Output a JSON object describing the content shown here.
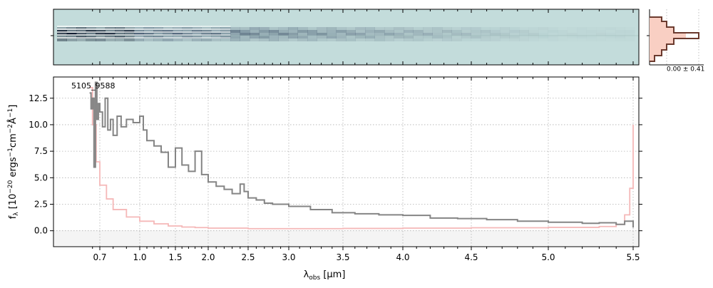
{
  "chart_data": {
    "type": "line",
    "label": "5105_9588",
    "xlabel_main": "λ",
    "xlabel_sub": "obs",
    "xlabel_unit": "[μm]",
    "ylabel": "f_λ [10^-20 ergs^-1 cm^-2 Å^-1]",
    "ylabel_main": "f",
    "ylabel_sub": "λ",
    "ylabel_rest": " [10",
    "ylabel_exp1": "−20",
    "ylabel_mid1": " ergs",
    "ylabel_exp2": "−1",
    "ylabel_mid2": "cm",
    "ylabel_exp3": "−2",
    "ylabel_mid3": "Å",
    "ylabel_exp4": "−1",
    "ylabel_end": "]",
    "xticks": [
      0.7,
      1.0,
      1.5,
      2.0,
      2.5,
      3.0,
      3.5,
      4.0,
      4.5,
      5.0,
      5.5
    ],
    "xtick_labels": [
      "0.7",
      "1.0",
      "1.5",
      "2.0",
      "2.5",
      "3.0",
      "3.5",
      "4.0",
      "4.5",
      "5.0",
      "5.5"
    ],
    "yticks": [
      0.0,
      2.5,
      5.0,
      7.5,
      10.0,
      12.5
    ],
    "ytick_labels": [
      "0.0",
      "2.5",
      "5.0",
      "7.5",
      "10.0",
      "12.5"
    ],
    "ylim": [
      -1.5,
      14.5
    ],
    "xlim": [
      0.55,
      5.52
    ],
    "grid": true,
    "profile_annotation": "0.00 ± 0.41",
    "colors": {
      "flux": "#858585",
      "error": "#f5b8b8",
      "profile": "#6b3a2e",
      "profile_fill": "#f9cfc3",
      "image_bg": "#c3dcdb"
    },
    "series": [
      {
        "role": "flux",
        "x": [
          0.56,
          0.58,
          0.6,
          0.62,
          0.64,
          0.66,
          0.68,
          0.7,
          0.72,
          0.74,
          0.76,
          0.78,
          0.8,
          0.83,
          0.86,
          0.9,
          0.95,
          1.0,
          1.05,
          1.1,
          1.2,
          1.3,
          1.4,
          1.5,
          1.6,
          1.7,
          1.8,
          1.9,
          2.0,
          2.1,
          2.2,
          2.3,
          2.4,
          2.45,
          2.5,
          2.6,
          2.7,
          2.8,
          3.0,
          3.2,
          3.4,
          3.6,
          3.8,
          4.0,
          4.2,
          4.4,
          4.6,
          4.8,
          5.0,
          5.2,
          5.3,
          5.4,
          5.45,
          5.5
        ],
        "y": [
          13.0,
          11.5,
          12.5,
          6.0,
          14.0,
          10.5,
          12.0,
          11.2,
          9.8,
          12.5,
          9.5,
          10.5,
          9.0,
          10.8,
          9.8,
          10.5,
          10.2,
          10.8,
          9.5,
          8.5,
          8.0,
          7.4,
          6.0,
          7.8,
          6.2,
          5.6,
          7.5,
          5.3,
          4.6,
          4.2,
          3.9,
          3.5,
          4.4,
          3.7,
          3.1,
          2.9,
          2.6,
          2.5,
          2.3,
          2.0,
          1.7,
          1.6,
          1.5,
          1.45,
          1.2,
          1.15,
          1.05,
          0.9,
          0.8,
          0.7,
          0.75,
          0.6,
          0.9,
          0.3
        ]
      },
      {
        "role": "error",
        "x": [
          0.56,
          0.6,
          0.65,
          0.7,
          0.75,
          0.8,
          0.9,
          1.0,
          1.2,
          1.4,
          1.6,
          1.8,
          2.0,
          2.5,
          3.0,
          3.5,
          4.0,
          4.5,
          5.0,
          5.3,
          5.4,
          5.45,
          5.48,
          5.5
        ],
        "y": [
          13.5,
          10.0,
          6.5,
          4.3,
          3.0,
          2.0,
          1.3,
          0.9,
          0.65,
          0.45,
          0.35,
          0.3,
          0.25,
          0.2,
          0.2,
          0.22,
          0.25,
          0.28,
          0.32,
          0.4,
          0.6,
          1.5,
          4.0,
          10.0
        ]
      }
    ]
  }
}
